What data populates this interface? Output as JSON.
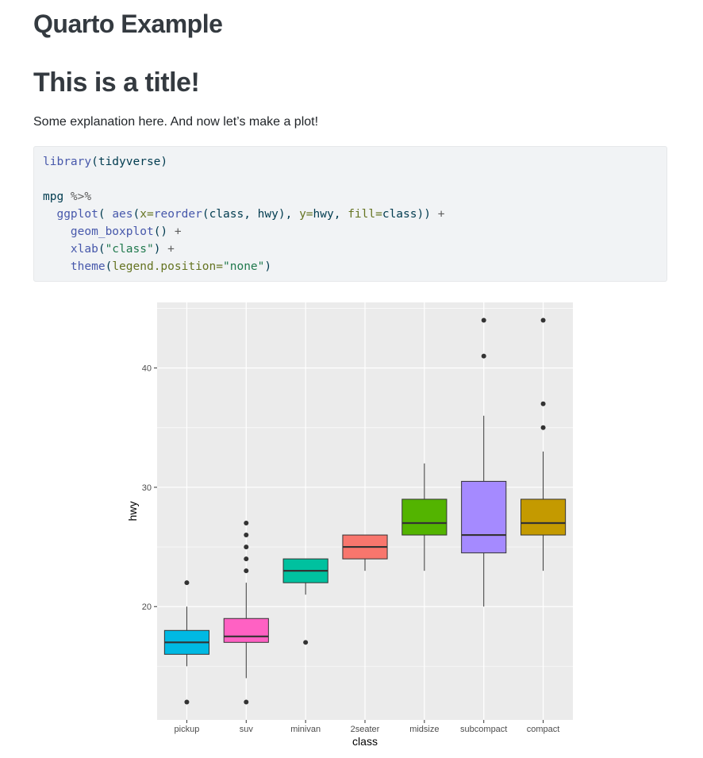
{
  "doc": {
    "title": "Quarto Example",
    "section_title": "This is a title!",
    "paragraph": "Some explanation here. And now let’s make a plot!"
  },
  "code": {
    "lines": [
      [
        {
          "t": "library",
          "c": "fn"
        },
        {
          "t": "(tidyverse)",
          "c": "plain"
        }
      ],
      [],
      [
        {
          "t": "mpg ",
          "c": "plain"
        },
        {
          "t": "%>%",
          "c": "op"
        }
      ],
      [
        {
          "t": "  ",
          "c": "plain"
        },
        {
          "t": "ggplot",
          "c": "fn"
        },
        {
          "t": "( ",
          "c": "plain"
        },
        {
          "t": "aes",
          "c": "fn"
        },
        {
          "t": "(",
          "c": "plain"
        },
        {
          "t": "x=",
          "c": "arg"
        },
        {
          "t": "reorder",
          "c": "fn"
        },
        {
          "t": "(class, hwy), ",
          "c": "plain"
        },
        {
          "t": "y=",
          "c": "arg"
        },
        {
          "t": "hwy, ",
          "c": "plain"
        },
        {
          "t": "fill=",
          "c": "arg"
        },
        {
          "t": "class)) ",
          "c": "plain"
        },
        {
          "t": "+",
          "c": "op"
        }
      ],
      [
        {
          "t": "    ",
          "c": "plain"
        },
        {
          "t": "geom_boxplot",
          "c": "fn"
        },
        {
          "t": "() ",
          "c": "plain"
        },
        {
          "t": "+",
          "c": "op"
        }
      ],
      [
        {
          "t": "    ",
          "c": "plain"
        },
        {
          "t": "xlab",
          "c": "fn"
        },
        {
          "t": "(",
          "c": "plain"
        },
        {
          "t": "\"class\"",
          "c": "str"
        },
        {
          "t": ") ",
          "c": "plain"
        },
        {
          "t": "+",
          "c": "op"
        }
      ],
      [
        {
          "t": "    ",
          "c": "plain"
        },
        {
          "t": "theme",
          "c": "fn"
        },
        {
          "t": "(",
          "c": "plain"
        },
        {
          "t": "legend.position=",
          "c": "arg"
        },
        {
          "t": "\"none\"",
          "c": "str"
        },
        {
          "t": ")",
          "c": "plain"
        }
      ]
    ]
  },
  "chart_data": {
    "type": "boxplot",
    "title": "",
    "xlabel": "class",
    "ylabel": "hwy",
    "ylim": [
      10.5,
      45.5
    ],
    "yticks": [
      20,
      30,
      40
    ],
    "grid": true,
    "legend": "none",
    "categories": [
      {
        "name": "pickup",
        "fill": "#00B9E3",
        "min": 15,
        "q1": 16,
        "median": 17,
        "q3": 18,
        "max": 20,
        "outliers": [
          22,
          12
        ]
      },
      {
        "name": "suv",
        "fill": "#FF61C3",
        "min": 14,
        "q1": 17,
        "median": 17.5,
        "q3": 19,
        "max": 22,
        "outliers": [
          27,
          26,
          25,
          24,
          23,
          12
        ]
      },
      {
        "name": "minivan",
        "fill": "#00C19F",
        "min": 21,
        "q1": 22,
        "median": 23,
        "q3": 24,
        "max": 24,
        "outliers": [
          17
        ]
      },
      {
        "name": "2seater",
        "fill": "#F8766D",
        "min": 23,
        "q1": 24,
        "median": 25,
        "q3": 26,
        "max": 26,
        "outliers": []
      },
      {
        "name": "midsize",
        "fill": "#53B400",
        "min": 23,
        "q1": 26,
        "median": 27,
        "q3": 29,
        "max": 32,
        "outliers": []
      },
      {
        "name": "subcompact",
        "fill": "#A58AFF",
        "min": 20,
        "q1": 24.5,
        "median": 26,
        "q3": 30.5,
        "max": 36,
        "outliers": [
          44,
          41
        ]
      },
      {
        "name": "compact",
        "fill": "#C49A00",
        "min": 23,
        "q1": 26,
        "median": 27,
        "q3": 29,
        "max": 33,
        "outliers": [
          44,
          37,
          35
        ]
      }
    ]
  }
}
